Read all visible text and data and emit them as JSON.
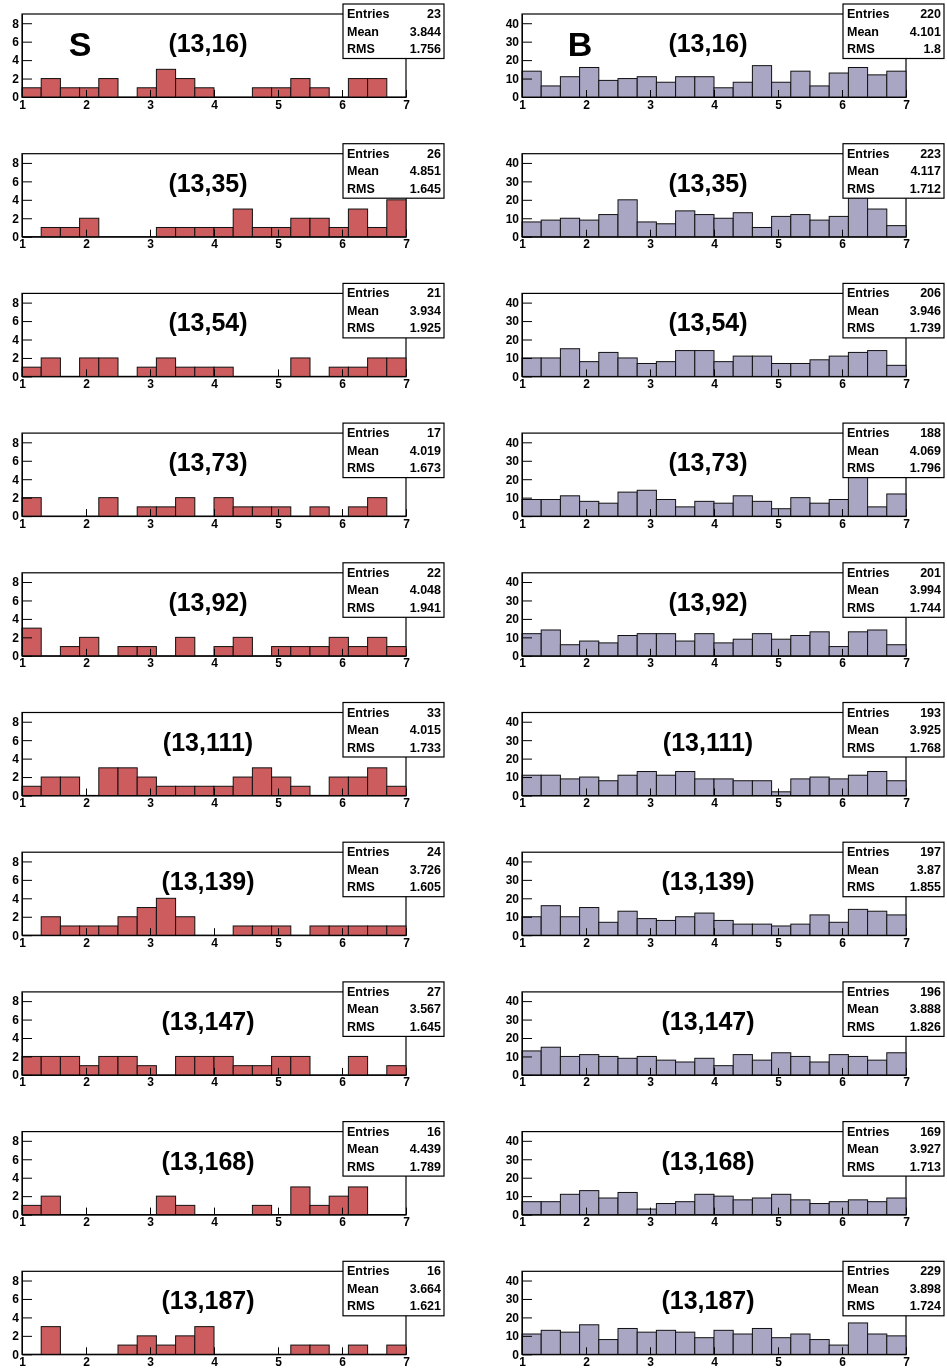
{
  "chart_data": [
    {
      "type": "histogram",
      "title": "(13,16)",
      "subtitle": "S",
      "bins": [
        1,
        1.3,
        1.6,
        1.9,
        2.2,
        2.5,
        2.8,
        3.1,
        3.4,
        3.7,
        4,
        4.3,
        4.6,
        4.9,
        5.2,
        5.5,
        5.8,
        6.1,
        6.4,
        6.7,
        7
      ],
      "values": [
        1,
        2,
        1,
        1,
        2,
        0,
        1,
        3,
        2,
        1,
        0,
        0,
        1,
        1,
        2,
        1,
        0,
        2,
        2,
        0
      ],
      "color": "#cd5c5e",
      "xlim": [
        1,
        7
      ],
      "xticks": [
        1,
        2,
        3,
        4,
        5,
        6,
        7
      ],
      "ylim": [
        0,
        9
      ],
      "yticks": [
        0,
        2,
        4,
        6,
        8
      ],
      "annotations": [
        "Entries 23",
        "Mean 3.844",
        "RMS 1.756"
      ]
    },
    {
      "type": "histogram",
      "title": "(13,16)",
      "subtitle": "B",
      "bins": [
        1,
        1.3,
        1.6,
        1.9,
        2.2,
        2.5,
        2.8,
        3.1,
        3.4,
        3.7,
        4,
        4.3,
        4.6,
        4.9,
        5.2,
        5.5,
        5.8,
        6.1,
        6.4,
        6.7,
        7
      ],
      "values": [
        14,
        6,
        11,
        16,
        9,
        10,
        11,
        8,
        11,
        11,
        5,
        8,
        17,
        8,
        14,
        6,
        13,
        16,
        12,
        14
      ],
      "color": "#a9a6c4",
      "xlim": [
        1,
        7
      ],
      "xticks": [
        1,
        2,
        3,
        4,
        5,
        6,
        7
      ],
      "ylim": [
        0,
        45
      ],
      "yticks": [
        0,
        10,
        20,
        30,
        40
      ],
      "annotations": [
        "Entries 220",
        "Mean 4.101",
        "RMS 1.8"
      ]
    },
    {
      "type": "histogram",
      "title": "(13,35)",
      "bins": [
        1,
        1.3,
        1.6,
        1.9,
        2.2,
        2.5,
        2.8,
        3.1,
        3.4,
        3.7,
        4,
        4.3,
        4.6,
        4.9,
        5.2,
        5.5,
        5.8,
        6.1,
        6.4,
        6.7,
        7
      ],
      "values": [
        0,
        1,
        1,
        2,
        0,
        0,
        0,
        1,
        1,
        1,
        1,
        3,
        1,
        1,
        2,
        2,
        1,
        3,
        1,
        4
      ],
      "color": "#cd5c5e",
      "xlim": [
        1,
        7
      ],
      "xticks": [
        1,
        2,
        3,
        4,
        5,
        6,
        7
      ],
      "ylim": [
        0,
        9
      ],
      "yticks": [
        0,
        2,
        4,
        6,
        8
      ],
      "annotations": [
        "Entries 26",
        "Mean 4.851",
        "RMS 1.645"
      ]
    },
    {
      "type": "histogram",
      "title": "(13,35)",
      "bins": [
        1,
        1.3,
        1.6,
        1.9,
        2.2,
        2.5,
        2.8,
        3.1,
        3.4,
        3.7,
        4,
        4.3,
        4.6,
        4.9,
        5.2,
        5.5,
        5.8,
        6.1,
        6.4,
        6.7,
        7
      ],
      "values": [
        8,
        9,
        10,
        9,
        12,
        20,
        8,
        7,
        14,
        12,
        10,
        13,
        5,
        11,
        12,
        9,
        11,
        22,
        15,
        6
      ],
      "color": "#a9a6c4",
      "xlim": [
        1,
        7
      ],
      "xticks": [
        1,
        2,
        3,
        4,
        5,
        6,
        7
      ],
      "ylim": [
        0,
        45
      ],
      "yticks": [
        0,
        10,
        20,
        30,
        40
      ],
      "annotations": [
        "Entries 223",
        "Mean 4.117",
        "RMS 1.712"
      ]
    },
    {
      "type": "histogram",
      "title": "(13,54)",
      "bins": [
        1,
        1.3,
        1.6,
        1.9,
        2.2,
        2.5,
        2.8,
        3.1,
        3.4,
        3.7,
        4,
        4.3,
        4.6,
        4.9,
        5.2,
        5.5,
        5.8,
        6.1,
        6.4,
        6.7,
        7
      ],
      "values": [
        1,
        2,
        0,
        2,
        2,
        0,
        1,
        2,
        1,
        1,
        1,
        0,
        0,
        0,
        2,
        0,
        1,
        1,
        2,
        2
      ],
      "color": "#cd5c5e",
      "xlim": [
        1,
        7
      ],
      "xticks": [
        1,
        2,
        3,
        4,
        5,
        6,
        7
      ],
      "ylim": [
        0,
        9
      ],
      "yticks": [
        0,
        2,
        4,
        6,
        8
      ],
      "annotations": [
        "Entries 21",
        "Mean 3.934",
        "RMS 1.925"
      ]
    },
    {
      "type": "histogram",
      "title": "(13,54)",
      "bins": [
        1,
        1.3,
        1.6,
        1.9,
        2.2,
        2.5,
        2.8,
        3.1,
        3.4,
        3.7,
        4,
        4.3,
        4.6,
        4.9,
        5.2,
        5.5,
        5.8,
        6.1,
        6.4,
        6.7,
        7
      ],
      "values": [
        10,
        10,
        15,
        8,
        13,
        10,
        7,
        8,
        14,
        14,
        8,
        11,
        11,
        7,
        7,
        9,
        11,
        13,
        14,
        6
      ],
      "color": "#a9a6c4",
      "xlim": [
        1,
        7
      ],
      "xticks": [
        1,
        2,
        3,
        4,
        5,
        6,
        7
      ],
      "ylim": [
        0,
        45
      ],
      "yticks": [
        0,
        10,
        20,
        30,
        40
      ],
      "annotations": [
        "Entries 206",
        "Mean 3.946",
        "RMS 1.739"
      ]
    },
    {
      "type": "histogram",
      "title": "(13,73)",
      "bins": [
        1,
        1.3,
        1.6,
        1.9,
        2.2,
        2.5,
        2.8,
        3.1,
        3.4,
        3.7,
        4,
        4.3,
        4.6,
        4.9,
        5.2,
        5.5,
        5.8,
        6.1,
        6.4,
        6.7,
        7
      ],
      "values": [
        2,
        0,
        0,
        0,
        2,
        0,
        1,
        1,
        2,
        0,
        2,
        1,
        1,
        1,
        0,
        1,
        0,
        1,
        2,
        0
      ],
      "color": "#cd5c5e",
      "xlim": [
        1,
        7
      ],
      "xticks": [
        1,
        2,
        3,
        4,
        5,
        6,
        7
      ],
      "ylim": [
        0,
        9
      ],
      "yticks": [
        0,
        2,
        4,
        6,
        8
      ],
      "annotations": [
        "Entries 17",
        "Mean 4.019",
        "RMS 1.673"
      ]
    },
    {
      "type": "histogram",
      "title": "(13,73)",
      "bins": [
        1,
        1.3,
        1.6,
        1.9,
        2.2,
        2.5,
        2.8,
        3.1,
        3.4,
        3.7,
        4,
        4.3,
        4.6,
        4.9,
        5.2,
        5.5,
        5.8,
        6.1,
        6.4,
        6.7,
        7
      ],
      "values": [
        9,
        9,
        11,
        8,
        7,
        13,
        14,
        9,
        5,
        8,
        7,
        11,
        8,
        4,
        10,
        7,
        9,
        22,
        5,
        12
      ],
      "color": "#a9a6c4",
      "xlim": [
        1,
        7
      ],
      "xticks": [
        1,
        2,
        3,
        4,
        5,
        6,
        7
      ],
      "ylim": [
        0,
        45
      ],
      "yticks": [
        0,
        10,
        20,
        30,
        40
      ],
      "annotations": [
        "Entries 188",
        "Mean 4.069",
        "RMS 1.796"
      ]
    },
    {
      "type": "histogram",
      "title": "(13,92)",
      "bins": [
        1,
        1.3,
        1.6,
        1.9,
        2.2,
        2.5,
        2.8,
        3.1,
        3.4,
        3.7,
        4,
        4.3,
        4.6,
        4.9,
        5.2,
        5.5,
        5.8,
        6.1,
        6.4,
        6.7,
        7
      ],
      "values": [
        3,
        0,
        1,
        2,
        0,
        1,
        1,
        0,
        2,
        0,
        1,
        2,
        0,
        1,
        1,
        1,
        2,
        1,
        2,
        1
      ],
      "color": "#cd5c5e",
      "xlim": [
        1,
        7
      ],
      "xticks": [
        1,
        2,
        3,
        4,
        5,
        6,
        7
      ],
      "ylim": [
        0,
        9
      ],
      "yticks": [
        0,
        2,
        4,
        6,
        8
      ],
      "annotations": [
        "Entries 22",
        "Mean 4.048",
        "RMS 1.941"
      ]
    },
    {
      "type": "histogram",
      "title": "(13,92)",
      "bins": [
        1,
        1.3,
        1.6,
        1.9,
        2.2,
        2.5,
        2.8,
        3.1,
        3.4,
        3.7,
        4,
        4.3,
        4.6,
        4.9,
        5.2,
        5.5,
        5.8,
        6.1,
        6.4,
        6.7,
        7
      ],
      "values": [
        12,
        14,
        6,
        8,
        7,
        11,
        12,
        12,
        8,
        12,
        7,
        9,
        12,
        9,
        11,
        13,
        5,
        13,
        14,
        6
      ],
      "color": "#a9a6c4",
      "xlim": [
        1,
        7
      ],
      "xticks": [
        1,
        2,
        3,
        4,
        5,
        6,
        7
      ],
      "ylim": [
        0,
        45
      ],
      "yticks": [
        0,
        10,
        20,
        30,
        40
      ],
      "annotations": [
        "Entries 201",
        "Mean 3.994",
        "RMS 1.744"
      ]
    },
    {
      "type": "histogram",
      "title": "(13,111)",
      "bins": [
        1,
        1.3,
        1.6,
        1.9,
        2.2,
        2.5,
        2.8,
        3.1,
        3.4,
        3.7,
        4,
        4.3,
        4.6,
        4.9,
        5.2,
        5.5,
        5.8,
        6.1,
        6.4,
        6.7,
        7
      ],
      "values": [
        1,
        2,
        2,
        0,
        3,
        3,
        2,
        1,
        1,
        1,
        1,
        2,
        3,
        2,
        1,
        0,
        2,
        2,
        3,
        1
      ],
      "color": "#cd5c5e",
      "xlim": [
        1,
        7
      ],
      "xticks": [
        1,
        2,
        3,
        4,
        5,
        6,
        7
      ],
      "ylim": [
        0,
        9
      ],
      "yticks": [
        0,
        2,
        4,
        6,
        8
      ],
      "annotations": [
        "Entries 33",
        "Mean 4.015",
        "RMS 1.733"
      ]
    },
    {
      "type": "histogram",
      "title": "(13,111)",
      "bins": [
        1,
        1.3,
        1.6,
        1.9,
        2.2,
        2.5,
        2.8,
        3.1,
        3.4,
        3.7,
        4,
        4.3,
        4.6,
        4.9,
        5.2,
        5.5,
        5.8,
        6.1,
        6.4,
        6.7,
        7
      ],
      "values": [
        11,
        11,
        9,
        10,
        8,
        11,
        13,
        11,
        13,
        9,
        9,
        8,
        8,
        2,
        9,
        10,
        9,
        11,
        13,
        8
      ],
      "color": "#a9a6c4",
      "xlim": [
        1,
        7
      ],
      "xticks": [
        1,
        2,
        3,
        4,
        5,
        6,
        7
      ],
      "ylim": [
        0,
        45
      ],
      "yticks": [
        0,
        10,
        20,
        30,
        40
      ],
      "annotations": [
        "Entries 193",
        "Mean 3.925",
        "RMS 1.768"
      ]
    },
    {
      "type": "histogram",
      "title": "(13,139)",
      "bins": [
        1,
        1.3,
        1.6,
        1.9,
        2.2,
        2.5,
        2.8,
        3.1,
        3.4,
        3.7,
        4,
        4.3,
        4.6,
        4.9,
        5.2,
        5.5,
        5.8,
        6.1,
        6.4,
        6.7,
        7
      ],
      "values": [
        0,
        2,
        1,
        1,
        1,
        2,
        3,
        4,
        2,
        0,
        0,
        1,
        1,
        1,
        0,
        1,
        1,
        1,
        1,
        1
      ],
      "color": "#cd5c5e",
      "xlim": [
        1,
        7
      ],
      "xticks": [
        1,
        2,
        3,
        4,
        5,
        6,
        7
      ],
      "ylim": [
        0,
        9
      ],
      "yticks": [
        0,
        2,
        4,
        6,
        8
      ],
      "annotations": [
        "Entries 24",
        "Mean 3.726",
        "RMS 1.605"
      ]
    },
    {
      "type": "histogram",
      "title": "(13,139)",
      "bins": [
        1,
        1.3,
        1.6,
        1.9,
        2.2,
        2.5,
        2.8,
        3.1,
        3.4,
        3.7,
        4,
        4.3,
        4.6,
        4.9,
        5.2,
        5.5,
        5.8,
        6.1,
        6.4,
        6.7,
        7
      ],
      "values": [
        10,
        16,
        10,
        15,
        7,
        13,
        9,
        8,
        10,
        12,
        8,
        6,
        6,
        5,
        6,
        11,
        7,
        14,
        13,
        11
      ],
      "color": "#a9a6c4",
      "xlim": [
        1,
        7
      ],
      "xticks": [
        1,
        2,
        3,
        4,
        5,
        6,
        7
      ],
      "ylim": [
        0,
        45
      ],
      "yticks": [
        0,
        10,
        20,
        30,
        40
      ],
      "annotations": [
        "Entries 197",
        "Mean 3.87",
        "RMS 1.855"
      ]
    },
    {
      "type": "histogram",
      "title": "(13,147)",
      "bins": [
        1,
        1.3,
        1.6,
        1.9,
        2.2,
        2.5,
        2.8,
        3.1,
        3.4,
        3.7,
        4,
        4.3,
        4.6,
        4.9,
        5.2,
        5.5,
        5.8,
        6.1,
        6.4,
        6.7,
        7
      ],
      "values": [
        2,
        2,
        2,
        1,
        2,
        2,
        1,
        0,
        2,
        2,
        2,
        1,
        1,
        2,
        2,
        0,
        0,
        2,
        0,
        1
      ],
      "color": "#cd5c5e",
      "xlim": [
        1,
        7
      ],
      "xticks": [
        1,
        2,
        3,
        4,
        5,
        6,
        7
      ],
      "ylim": [
        0,
        9
      ],
      "yticks": [
        0,
        2,
        4,
        6,
        8
      ],
      "annotations": [
        "Entries 27",
        "Mean 3.567",
        "RMS 1.645"
      ]
    },
    {
      "type": "histogram",
      "title": "(13,147)",
      "bins": [
        1,
        1.3,
        1.6,
        1.9,
        2.2,
        2.5,
        2.8,
        3.1,
        3.4,
        3.7,
        4,
        4.3,
        4.6,
        4.9,
        5.2,
        5.5,
        5.8,
        6.1,
        6.4,
        6.7,
        7
      ],
      "values": [
        13,
        15,
        10,
        11,
        10,
        9,
        10,
        8,
        7,
        9,
        5,
        11,
        8,
        12,
        10,
        7,
        11,
        10,
        8,
        12
      ],
      "color": "#a9a6c4",
      "xlim": [
        1,
        7
      ],
      "xticks": [
        1,
        2,
        3,
        4,
        5,
        6,
        7
      ],
      "ylim": [
        0,
        45
      ],
      "yticks": [
        0,
        10,
        20,
        30,
        40
      ],
      "annotations": [
        "Entries 196",
        "Mean 3.888",
        "RMS 1.826"
      ]
    },
    {
      "type": "histogram",
      "title": "(13,168)",
      "bins": [
        1,
        1.3,
        1.6,
        1.9,
        2.2,
        2.5,
        2.8,
        3.1,
        3.4,
        3.7,
        4,
        4.3,
        4.6,
        4.9,
        5.2,
        5.5,
        5.8,
        6.1,
        6.4,
        6.7,
        7
      ],
      "values": [
        1,
        2,
        0,
        0,
        0,
        0,
        0,
        2,
        1,
        0,
        0,
        0,
        1,
        0,
        3,
        1,
        2,
        3,
        0,
        0
      ],
      "color": "#cd5c5e",
      "xlim": [
        1,
        7
      ],
      "xticks": [
        1,
        2,
        3,
        4,
        5,
        6,
        7
      ],
      "ylim": [
        0,
        9
      ],
      "yticks": [
        0,
        2,
        4,
        6,
        8
      ],
      "annotations": [
        "Entries 16",
        "Mean 4.439",
        "RMS 1.789"
      ]
    },
    {
      "type": "histogram",
      "title": "(13,168)",
      "bins": [
        1,
        1.3,
        1.6,
        1.9,
        2.2,
        2.5,
        2.8,
        3.1,
        3.4,
        3.7,
        4,
        4.3,
        4.6,
        4.9,
        5.2,
        5.5,
        5.8,
        6.1,
        6.4,
        6.7,
        7
      ],
      "values": [
        7,
        7,
        11,
        13,
        9,
        12,
        3,
        6,
        7,
        11,
        10,
        8,
        9,
        11,
        8,
        6,
        7,
        8,
        7,
        9
      ],
      "color": "#a9a6c4",
      "xlim": [
        1,
        7
      ],
      "xticks": [
        1,
        2,
        3,
        4,
        5,
        6,
        7
      ],
      "ylim": [
        0,
        45
      ],
      "yticks": [
        0,
        10,
        20,
        30,
        40
      ],
      "annotations": [
        "Entries 169",
        "Mean 3.927",
        "RMS 1.713"
      ]
    },
    {
      "type": "histogram",
      "title": "(13,187)",
      "bins": [
        1,
        1.3,
        1.6,
        1.9,
        2.2,
        2.5,
        2.8,
        3.1,
        3.4,
        3.7,
        4,
        4.3,
        4.6,
        4.9,
        5.2,
        5.5,
        5.8,
        6.1,
        6.4,
        6.7,
        7
      ],
      "values": [
        0,
        3,
        0,
        0,
        0,
        1,
        2,
        1,
        2,
        3,
        0,
        0,
        0,
        0,
        1,
        1,
        0,
        1,
        0,
        1
      ],
      "color": "#cd5c5e",
      "xlim": [
        1,
        7
      ],
      "xticks": [
        1,
        2,
        3,
        4,
        5,
        6,
        7
      ],
      "ylim": [
        0,
        9
      ],
      "yticks": [
        0,
        2,
        4,
        6,
        8
      ],
      "annotations": [
        "Entries 16",
        "Mean 3.664",
        "RMS 1.621"
      ]
    },
    {
      "type": "histogram",
      "title": "(13,187)",
      "bins": [
        1,
        1.3,
        1.6,
        1.9,
        2.2,
        2.5,
        2.8,
        3.1,
        3.4,
        3.7,
        4,
        4.3,
        4.6,
        4.9,
        5.2,
        5.5,
        5.8,
        6.1,
        6.4,
        6.7,
        7
      ],
      "values": [
        11,
        13,
        12,
        16,
        8,
        14,
        12,
        13,
        12,
        9,
        13,
        11,
        14,
        9,
        11,
        8,
        5,
        17,
        11,
        10
      ],
      "color": "#a9a6c4",
      "xlim": [
        1,
        7
      ],
      "xticks": [
        1,
        2,
        3,
        4,
        5,
        6,
        7
      ],
      "ylim": [
        0,
        45
      ],
      "yticks": [
        0,
        10,
        20,
        30,
        40
      ],
      "annotations": [
        "Entries 229",
        "Mean 3.898",
        "RMS 1.724"
      ]
    }
  ]
}
